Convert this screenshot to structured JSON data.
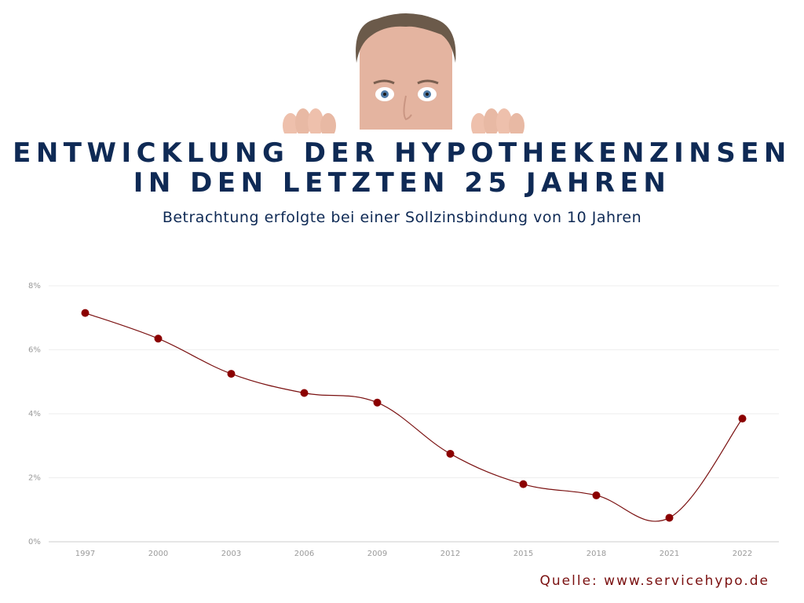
{
  "header": {
    "title_line1": "ENTWICKLUNG DER HYPOTHEKENZINSEN",
    "title_line2": "IN DEN LETZTEN 25 JAHREN",
    "subtitle": "Betrachtung erfolgte bei einer Sollzinsbindung von 10 Jahren"
  },
  "hero_image": {
    "description": "man peeking over edge with hands",
    "skin_color": "#e8b9a4",
    "hair_color": "#6b5a4a"
  },
  "source": "Quelle: www.servicehypo.de",
  "colors": {
    "title": "#0f2a55",
    "line": "#7a1010",
    "marker": "#8b0000",
    "grid": "#eeeeee",
    "axis": "#cccccc",
    "tick": "#9a9a9a"
  },
  "chart_data": {
    "type": "line",
    "categories": [
      "1997",
      "2000",
      "2003",
      "2006",
      "2009",
      "2012",
      "2015",
      "2018",
      "2021",
      "2022"
    ],
    "series": [
      {
        "values": [
          7.15,
          6.35,
          5.25,
          4.65,
          4.35,
          2.75,
          1.8,
          1.45,
          0.75,
          3.85
        ]
      }
    ],
    "y_ticks": [
      "0%",
      "2%",
      "4%",
      "6%",
      "8%"
    ],
    "y_tick_values": [
      0,
      2,
      4,
      6,
      8
    ],
    "ylim": [
      0,
      8
    ],
    "grid": true,
    "legend": "none",
    "smooth": true
  }
}
